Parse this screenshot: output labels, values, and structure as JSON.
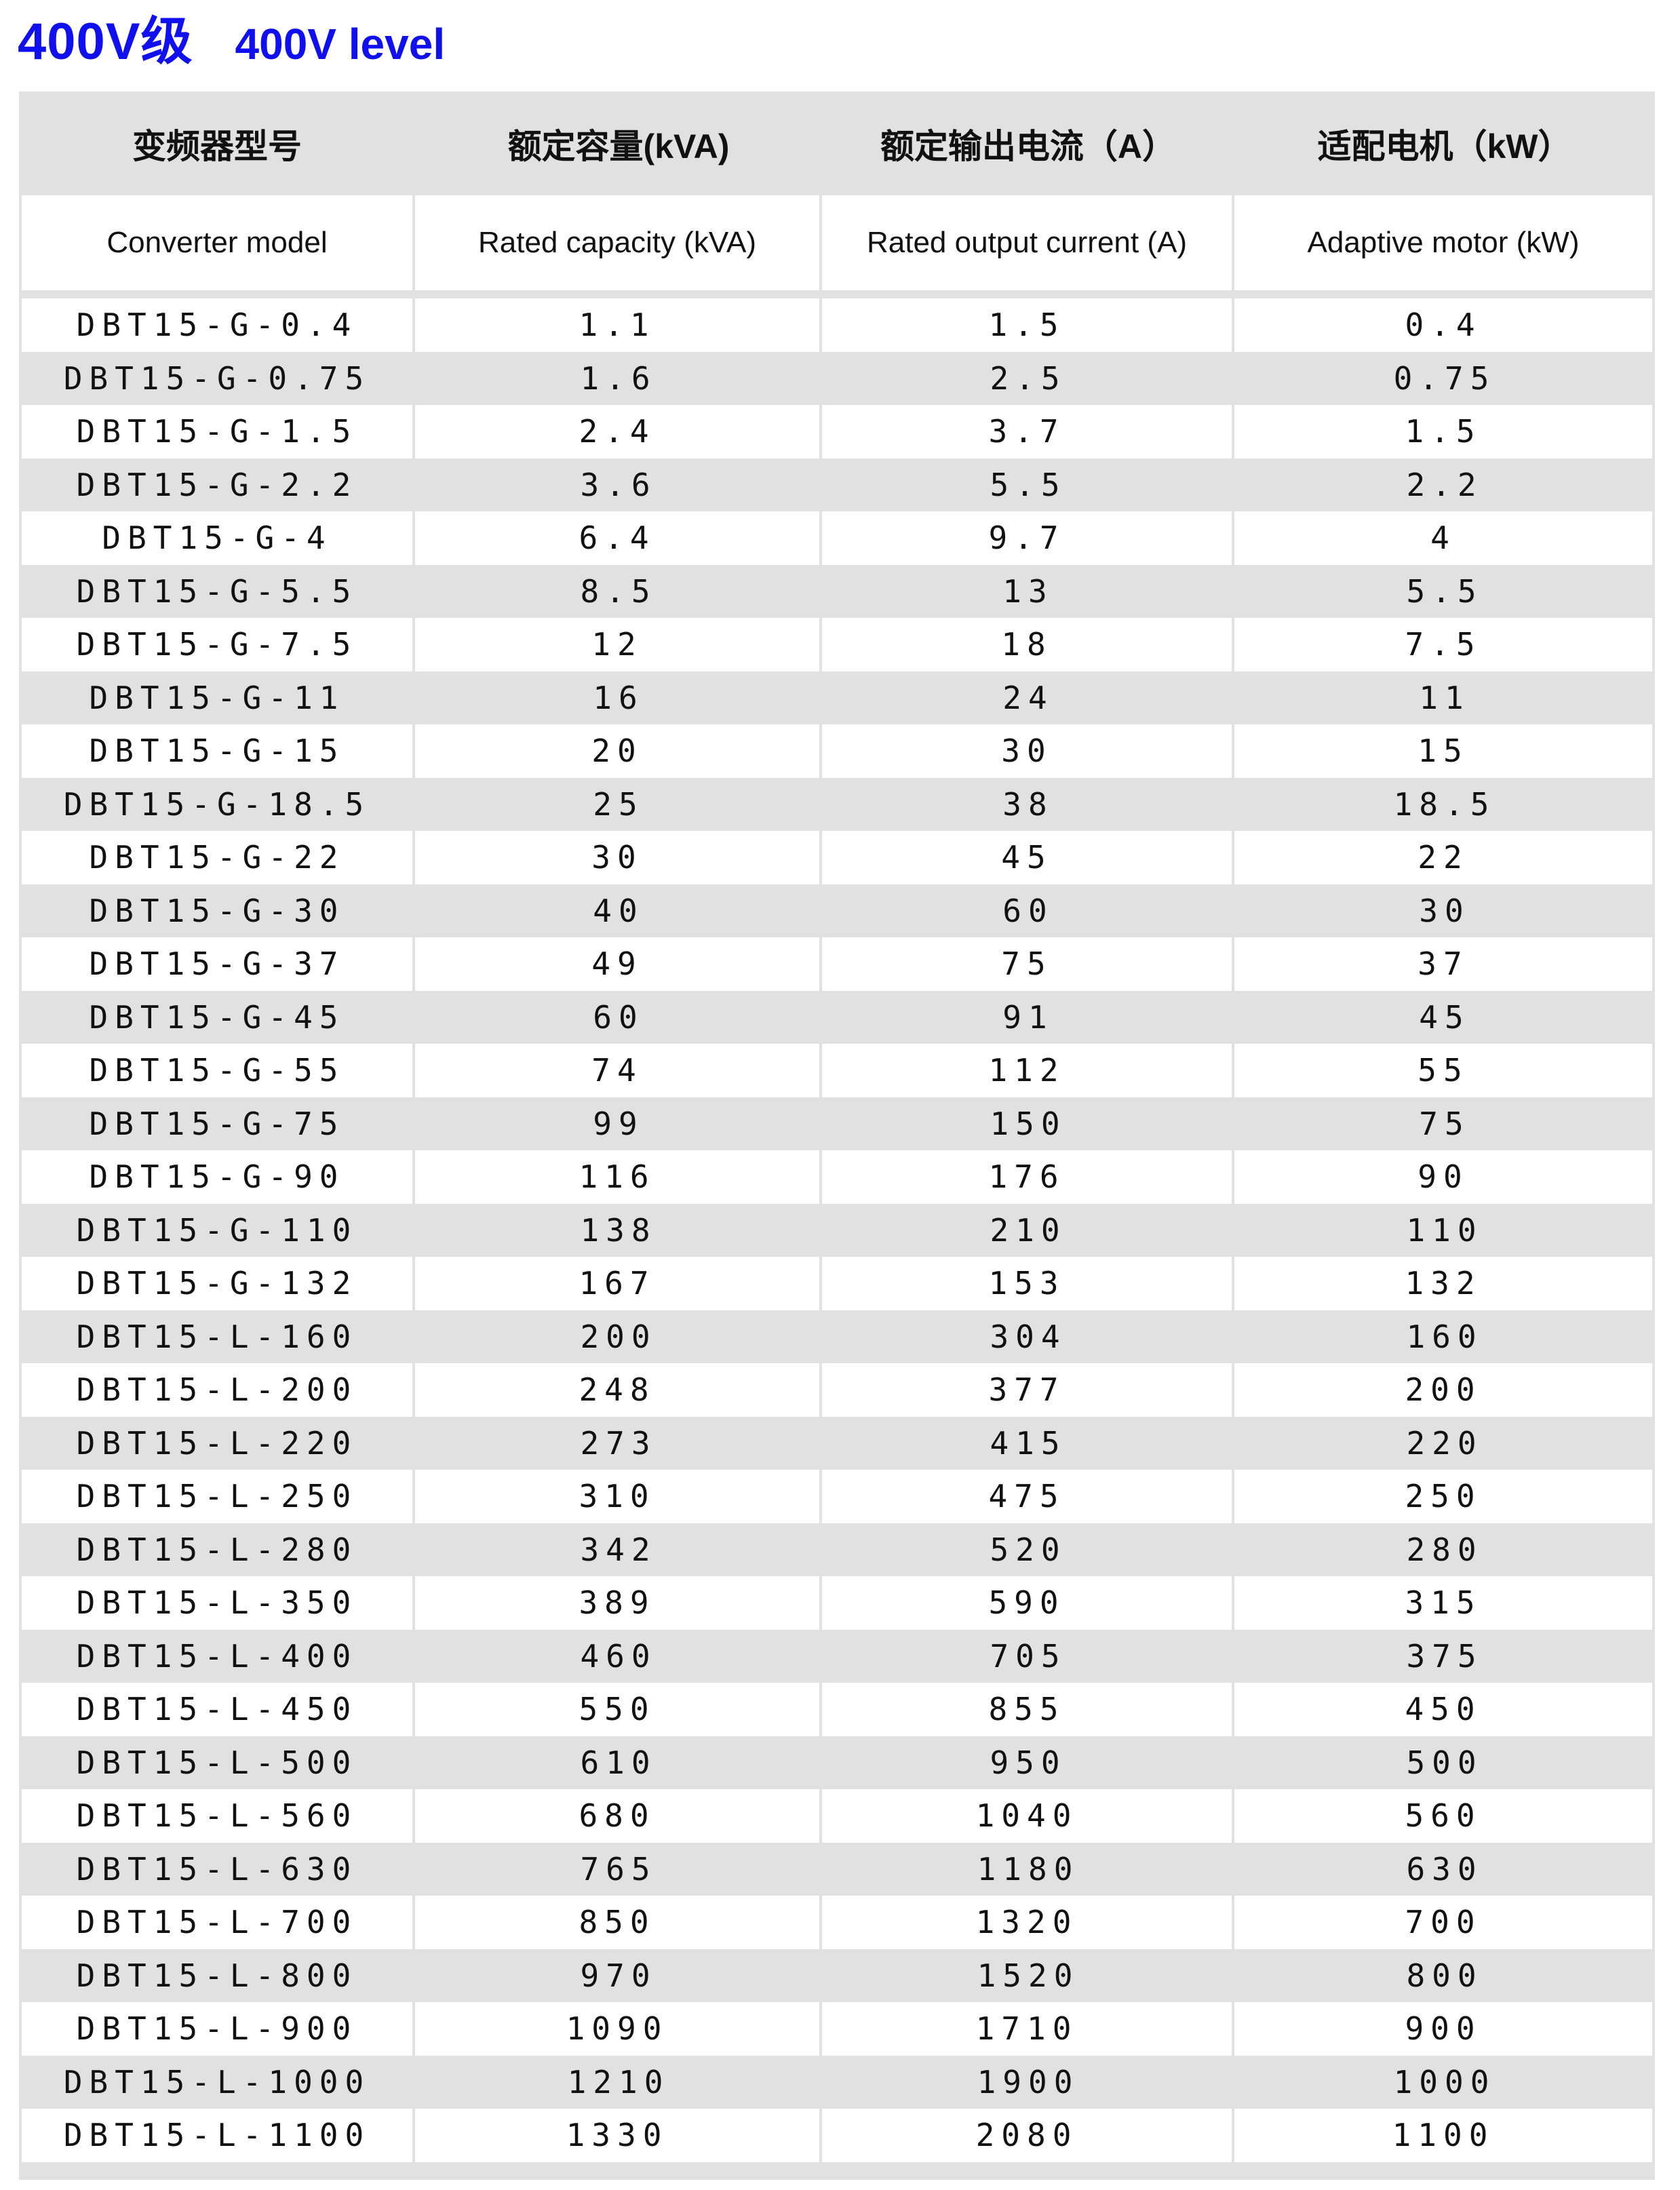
{
  "title": {
    "zh": "400V级",
    "en": "400V level",
    "color": "#0f0ff0"
  },
  "table": {
    "columns_zh": [
      "变频器型号",
      "额定容量(kVA)",
      "额定输出电流（A）",
      "适配电机（kW）"
    ],
    "columns_en": [
      "Converter model",
      "Rated capacity (kVA)",
      "Rated output current (A)",
      "Adaptive motor (kW)"
    ],
    "colors": {
      "alt_row": "#e1e1e1",
      "border": "#e1e1e1",
      "text": "#111111"
    },
    "rows": [
      {
        "model": "DBT15-G-0.4",
        "capacity_kva": "1.1",
        "current_a": "1.5",
        "motor_kw": "0.4"
      },
      {
        "model": "DBT15-G-0.75",
        "capacity_kva": "1.6",
        "current_a": "2.5",
        "motor_kw": "0.75"
      },
      {
        "model": "DBT15-G-1.5",
        "capacity_kva": "2.4",
        "current_a": "3.7",
        "motor_kw": "1.5"
      },
      {
        "model": "DBT15-G-2.2",
        "capacity_kva": "3.6",
        "current_a": "5.5",
        "motor_kw": "2.2"
      },
      {
        "model": "DBT15-G-4",
        "capacity_kva": "6.4",
        "current_a": "9.7",
        "motor_kw": "4"
      },
      {
        "model": "DBT15-G-5.5",
        "capacity_kva": "8.5",
        "current_a": "13",
        "motor_kw": "5.5"
      },
      {
        "model": "DBT15-G-7.5",
        "capacity_kva": "12",
        "current_a": "18",
        "motor_kw": "7.5"
      },
      {
        "model": "DBT15-G-11",
        "capacity_kva": "16",
        "current_a": "24",
        "motor_kw": "11"
      },
      {
        "model": "DBT15-G-15",
        "capacity_kva": "20",
        "current_a": "30",
        "motor_kw": "15"
      },
      {
        "model": "DBT15-G-18.5",
        "capacity_kva": "25",
        "current_a": "38",
        "motor_kw": "18.5"
      },
      {
        "model": "DBT15-G-22",
        "capacity_kva": "30",
        "current_a": "45",
        "motor_kw": "22"
      },
      {
        "model": "DBT15-G-30",
        "capacity_kva": "40",
        "current_a": "60",
        "motor_kw": "30"
      },
      {
        "model": "DBT15-G-37",
        "capacity_kva": "49",
        "current_a": "75",
        "motor_kw": "37"
      },
      {
        "model": "DBT15-G-45",
        "capacity_kva": "60",
        "current_a": "91",
        "motor_kw": "45"
      },
      {
        "model": "DBT15-G-55",
        "capacity_kva": "74",
        "current_a": "112",
        "motor_kw": "55"
      },
      {
        "model": "DBT15-G-75",
        "capacity_kva": "99",
        "current_a": "150",
        "motor_kw": "75"
      },
      {
        "model": "DBT15-G-90",
        "capacity_kva": "116",
        "current_a": "176",
        "motor_kw": "90"
      },
      {
        "model": "DBT15-G-110",
        "capacity_kva": "138",
        "current_a": "210",
        "motor_kw": "110"
      },
      {
        "model": "DBT15-G-132",
        "capacity_kva": "167",
        "current_a": "153",
        "motor_kw": "132"
      },
      {
        "model": "DBT15-L-160",
        "capacity_kva": "200",
        "current_a": "304",
        "motor_kw": "160"
      },
      {
        "model": "DBT15-L-200",
        "capacity_kva": "248",
        "current_a": "377",
        "motor_kw": "200"
      },
      {
        "model": "DBT15-L-220",
        "capacity_kva": "273",
        "current_a": "415",
        "motor_kw": "220"
      },
      {
        "model": "DBT15-L-250",
        "capacity_kva": "310",
        "current_a": "475",
        "motor_kw": "250"
      },
      {
        "model": "DBT15-L-280",
        "capacity_kva": "342",
        "current_a": "520",
        "motor_kw": "280"
      },
      {
        "model": "DBT15-L-350",
        "capacity_kva": "389",
        "current_a": "590",
        "motor_kw": "315"
      },
      {
        "model": "DBT15-L-400",
        "capacity_kva": "460",
        "current_a": "705",
        "motor_kw": "375"
      },
      {
        "model": "DBT15-L-450",
        "capacity_kva": "550",
        "current_a": "855",
        "motor_kw": "450"
      },
      {
        "model": "DBT15-L-500",
        "capacity_kva": "610",
        "current_a": "950",
        "motor_kw": "500"
      },
      {
        "model": "DBT15-L-560",
        "capacity_kva": "680",
        "current_a": "1040",
        "motor_kw": "560"
      },
      {
        "model": "DBT15-L-630",
        "capacity_kva": "765",
        "current_a": "1180",
        "motor_kw": "630"
      },
      {
        "model": "DBT15-L-700",
        "capacity_kva": "850",
        "current_a": "1320",
        "motor_kw": "700"
      },
      {
        "model": "DBT15-L-800",
        "capacity_kva": "970",
        "current_a": "1520",
        "motor_kw": "800"
      },
      {
        "model": "DBT15-L-900",
        "capacity_kva": "1090",
        "current_a": "1710",
        "motor_kw": "900"
      },
      {
        "model": "DBT15-L-1000",
        "capacity_kva": "1210",
        "current_a": "1900",
        "motor_kw": "1000"
      },
      {
        "model": "DBT15-L-1100",
        "capacity_kva": "1330",
        "current_a": "2080",
        "motor_kw": "1100"
      }
    ]
  }
}
